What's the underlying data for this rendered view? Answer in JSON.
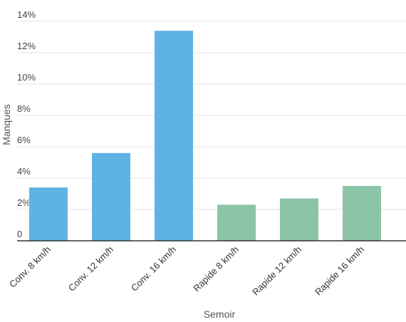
{
  "chart_data": {
    "type": "bar",
    "title": "",
    "xlabel": "Semoir",
    "ylabel": "Manques",
    "categories": [
      "Conv. 8 km/h",
      "Conv. 12 km/h",
      "Conv. 16 km/h",
      "Rapide 8 km/h",
      "Rapide 12 km/h",
      "Rapide 16 km/h"
    ],
    "values": [
      3.4,
      5.6,
      13.4,
      2.3,
      2.7,
      3.5
    ],
    "bar_colors": [
      "#5fb3e4",
      "#5fb3e4",
      "#5fb3e4",
      "#8bc4a7",
      "#8bc4a7",
      "#8bc4a7"
    ],
    "ylim": [
      0,
      14
    ],
    "yticks": [
      0,
      2,
      4,
      6,
      8,
      10,
      12,
      14
    ],
    "ytick_labels": [
      "0",
      "2%",
      "4%",
      "6%",
      "8%",
      "10%",
      "12%",
      "14%"
    ],
    "grid": true,
    "legend": "none"
  }
}
